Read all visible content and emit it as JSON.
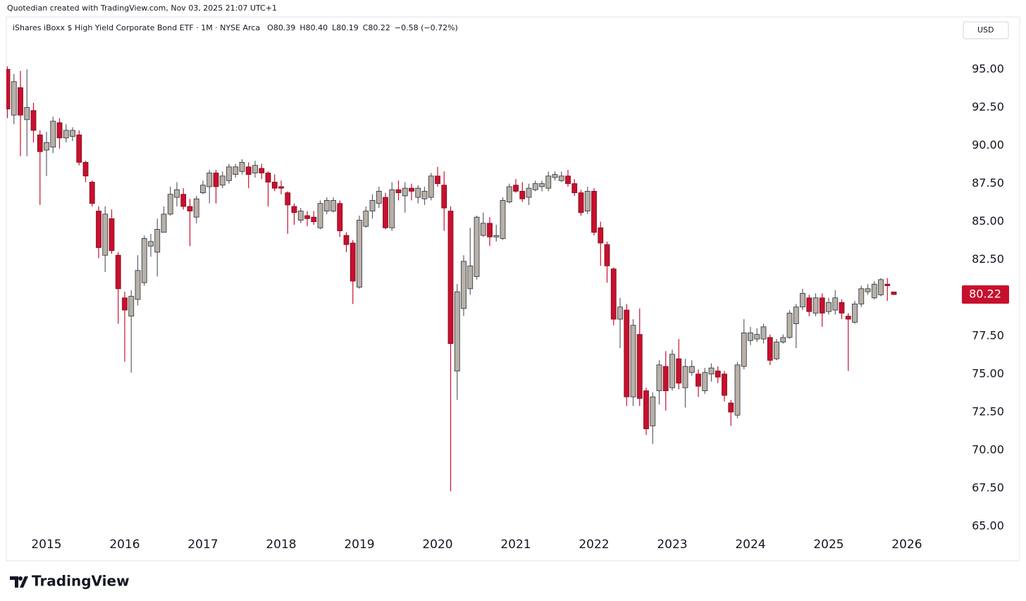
{
  "header": {
    "credit": "Quotedian created with TradingView.com, Nov 03, 2025 21:07 UTC+1",
    "symbol": "iShares iBoxx $ High Yield Corporate Bond ETF · 1M · NYSE Arca",
    "ohlc": [
      "O80.39",
      "H80.40",
      "L80.19",
      "C80.22"
    ],
    "change": "−0.58 (−0.72%)",
    "currency": "USD",
    "last_price": 80.22,
    "brand": "TradingView"
  },
  "chart_data": {
    "type": "candlestick",
    "up_color": "#b8b1a7",
    "down_color": "#c8102e",
    "ylim": [
      64.4,
      98.4
    ],
    "yticks": [
      {
        "value": 65,
        "label": "65.00"
      },
      {
        "value": 67.5,
        "label": "67.50"
      },
      {
        "value": 70,
        "label": "70.00"
      },
      {
        "value": 72.5,
        "label": "72.50"
      },
      {
        "value": 75,
        "label": "75.00"
      },
      {
        "value": 77.5,
        "label": "77.50"
      },
      {
        "value": 80,
        "label": "80.00"
      },
      {
        "value": 82.5,
        "label": "82.50"
      },
      {
        "value": 85,
        "label": "85.00"
      },
      {
        "value": 87.5,
        "label": "87.50"
      },
      {
        "value": 90,
        "label": "90.00"
      },
      {
        "value": 92.5,
        "label": "92.50"
      },
      {
        "value": 95,
        "label": "95.00"
      }
    ],
    "categories": [
      null,
      null,
      null,
      null,
      null,
      null,
      "2015",
      null,
      null,
      null,
      null,
      null,
      null,
      null,
      null,
      null,
      null,
      null,
      "2016",
      null,
      null,
      null,
      null,
      null,
      null,
      null,
      null,
      null,
      null,
      null,
      "2017",
      null,
      null,
      null,
      null,
      null,
      null,
      null,
      null,
      null,
      null,
      null,
      "2018",
      null,
      null,
      null,
      null,
      null,
      null,
      null,
      null,
      null,
      null,
      null,
      "2019",
      null,
      null,
      null,
      null,
      null,
      null,
      null,
      null,
      null,
      null,
      null,
      "2020",
      null,
      null,
      null,
      null,
      null,
      null,
      null,
      null,
      null,
      null,
      null,
      "2021",
      null,
      null,
      null,
      null,
      null,
      null,
      null,
      null,
      null,
      null,
      null,
      "2022",
      null,
      null,
      null,
      null,
      null,
      null,
      null,
      null,
      null,
      null,
      null,
      "2023",
      null,
      null,
      null,
      null,
      null,
      null,
      null,
      null,
      null,
      null,
      null,
      "2024",
      null,
      null,
      null,
      null,
      null,
      null,
      null,
      null,
      null,
      null,
      null,
      "2025",
      null,
      null,
      null,
      null,
      null,
      null,
      null,
      null,
      null,
      null,
      null,
      "2026"
    ],
    "open": [
      95.0,
      92.0,
      93.8,
      91.7,
      92.3,
      90.7,
      89.7,
      89.9,
      91.5,
      90.5,
      90.6,
      90.7,
      88.9,
      87.6,
      85.7,
      82.8,
      85.2,
      82.8,
      80.0,
      78.8,
      79.9,
      81.0,
      83.4,
      83.0,
      84.3,
      85.5,
      86.6,
      86.8,
      86.0,
      85.3,
      86.9,
      87.3,
      88.2,
      87.4,
      87.7,
      88.1,
      88.3,
      88.6,
      88.2,
      88.5,
      88.2,
      87.6,
      87.3,
      86.9,
      86.0,
      85.1,
      85.4,
      85.3,
      84.6,
      85.7,
      85.7,
      86.2,
      84.1,
      83.6,
      80.7,
      84.7,
      85.7,
      86.2,
      86.6,
      84.6,
      87.1,
      86.7,
      87.2,
      86.6,
      86.5,
      86.6,
      88.0,
      87.4,
      85.7,
      75.2,
      79.3,
      80.6,
      81.4,
      84.1,
      84.9,
      84.0,
      83.9,
      86.3,
      87.4,
      87.0,
      86.6,
      87.1,
      87.3,
      87.2,
      87.9,
      87.7,
      88.0,
      87.5,
      86.9,
      85.7,
      87.0,
      84.6,
      83.5,
      81.9,
      78.6,
      79.2,
      73.5,
      77.6,
      73.9,
      71.6,
      73.9,
      75.5,
      74.1,
      76.0,
      74.1,
      75.1,
      75.0,
      73.9,
      75.0,
      75.2,
      75.0,
      73.1,
      72.3,
      75.5,
      77.2,
      77.3,
      77.3,
      77.4,
      76.0,
      77.1,
      77.4,
      78.3,
      79.4,
      80.0,
      79.0,
      80.0,
      79.1,
      79.2,
      79.7,
      78.8,
      78.4,
      79.6,
      80.4,
      80.0,
      80.2,
      80.9,
      80.39,
      null,
      null
    ],
    "high": [
      95.2,
      94.7,
      94.9,
      95.0,
      92.8,
      91.0,
      90.9,
      91.9,
      91.8,
      91.4,
      91.2,
      91.0,
      89.0,
      87.7,
      86.0,
      86.0,
      85.8,
      83.0,
      80.4,
      80.5,
      82.8,
      84.1,
      84.2,
      85.2,
      86.0,
      87.3,
      87.6,
      87.2,
      86.5,
      86.7,
      87.7,
      88.4,
      88.4,
      88.3,
      88.8,
      88.8,
      89.1,
      88.9,
      89.0,
      88.8,
      88.3,
      88.1,
      87.7,
      87.0,
      86.2,
      85.9,
      85.7,
      85.7,
      86.4,
      86.6,
      86.6,
      86.4,
      84.3,
      83.8,
      85.4,
      86.0,
      86.8,
      87.3,
      86.9,
      87.6,
      87.7,
      87.6,
      87.5,
      87.4,
      87.3,
      88.2,
      88.6,
      88.3,
      86.0,
      80.9,
      82.8,
      84.6,
      85.4,
      85.6,
      85.3,
      84.8,
      86.6,
      87.5,
      87.8,
      87.6,
      87.5,
      87.7,
      87.7,
      88.3,
      88.3,
      88.3,
      88.4,
      87.8,
      87.1,
      87.3,
      87.2,
      85.0,
      83.7,
      82.0,
      80.0,
      79.6,
      78.6,
      79.3,
      74.1,
      73.8,
      75.9,
      76.5,
      76.6,
      77.3,
      76.0,
      75.9,
      75.3,
      75.4,
      75.7,
      75.5,
      75.2,
      73.3,
      75.8,
      78.6,
      78.1,
      78.0,
      78.3,
      77.6,
      77.3,
      77.6,
      79.2,
      79.6,
      80.6,
      80.2,
      80.3,
      80.3,
      80.0,
      80.5,
      79.9,
      79.0,
      79.8,
      80.8,
      80.9,
      81.1,
      81.3,
      81.3,
      80.4,
      null,
      null
    ],
    "low": [
      91.8,
      91.4,
      89.3,
      89.3,
      90.2,
      86.1,
      88.0,
      89.5,
      89.8,
      90.2,
      90.3,
      88.7,
      87.6,
      86.0,
      82.6,
      81.7,
      82.9,
      78.3,
      75.8,
      75.1,
      79.5,
      80.8,
      82.7,
      81.4,
      84.3,
      85.4,
      86.0,
      85.8,
      83.4,
      84.9,
      86.8,
      86.2,
      86.2,
      87.2,
      87.5,
      87.9,
      88.1,
      87.2,
      87.9,
      87.8,
      86.0,
      87.0,
      86.8,
      84.2,
      84.8,
      84.9,
      84.7,
      84.8,
      84.5,
      85.5,
      85.6,
      84.0,
      83.0,
      79.6,
      80.6,
      84.6,
      85.2,
      85.9,
      84.5,
      84.4,
      86.4,
      85.6,
      86.4,
      86.2,
      86.1,
      86.4,
      87.3,
      84.4,
      67.3,
      73.3,
      78.8,
      80.2,
      81.2,
      84.0,
      83.4,
      83.7,
      83.8,
      86.2,
      86.9,
      86.3,
      86.1,
      87.0,
      87.0,
      87.0,
      87.7,
      87.6,
      87.3,
      86.7,
      85.4,
      85.5,
      84.1,
      82.1,
      81.0,
      78.2,
      76.7,
      72.9,
      72.9,
      72.9,
      71.0,
      70.4,
      73.0,
      72.6,
      73.9,
      74.0,
      72.8,
      74.9,
      73.5,
      73.7,
      74.5,
      74.4,
      73.2,
      71.6,
      72.1,
      75.3,
      76.9,
      77.1,
      77.0,
      75.6,
      75.9,
      77.0,
      77.3,
      76.7,
      79.2,
      78.8,
      78.8,
      78.1,
      78.9,
      78.9,
      78.6,
      75.2,
      78.3,
      79.4,
      80.2,
      79.9,
      80.1,
      79.8,
      80.19,
      null,
      null
    ],
    "close": [
      92.4,
      94.2,
      92.0,
      92.5,
      91.0,
      89.6,
      90.2,
      91.6,
      90.5,
      91.0,
      91.0,
      88.9,
      88.0,
      86.2,
      83.3,
      85.5,
      83.1,
      80.6,
      79.2,
      80.1,
      81.8,
      83.9,
      83.7,
      84.5,
      85.5,
      86.8,
      87.1,
      86.0,
      85.7,
      86.5,
      87.4,
      88.2,
      87.3,
      88.0,
      88.6,
      88.6,
      88.9,
      88.1,
      88.7,
      88.2,
      87.6,
      87.2,
      87.2,
      86.1,
      85.6,
      85.7,
      85.2,
      85.0,
      86.2,
      86.4,
      86.4,
      84.4,
      83.5,
      81.1,
      85.1,
      85.7,
      86.4,
      87.0,
      84.6,
      87.1,
      86.9,
      87.2,
      87.0,
      87.2,
      87.0,
      88.0,
      87.5,
      85.9,
      77.0,
      80.4,
      82.4,
      82.1,
      85.3,
      84.9,
      84.0,
      84.1,
      86.4,
      87.3,
      87.0,
      86.5,
      87.2,
      87.5,
      87.5,
      88.0,
      88.1,
      88.0,
      87.5,
      86.9,
      85.6,
      87.0,
      84.3,
      83.6,
      82.1,
      78.6,
      79.4,
      73.5,
      78.2,
      73.4,
      71.4,
      73.5,
      75.6,
      73.9,
      76.3,
      74.4,
      75.5,
      75.5,
      74.2,
      75.1,
      75.4,
      74.8,
      73.6,
      72.5,
      75.6,
      77.7,
      77.7,
      77.6,
      78.1,
      75.9,
      77.1,
      77.4,
      79.0,
      79.4,
      80.3,
      79.1,
      80.0,
      79.0,
      79.7,
      80.0,
      79.0,
      78.6,
      79.6,
      80.6,
      80.6,
      80.9,
      81.2,
      80.8,
      80.22,
      null,
      null
    ]
  }
}
